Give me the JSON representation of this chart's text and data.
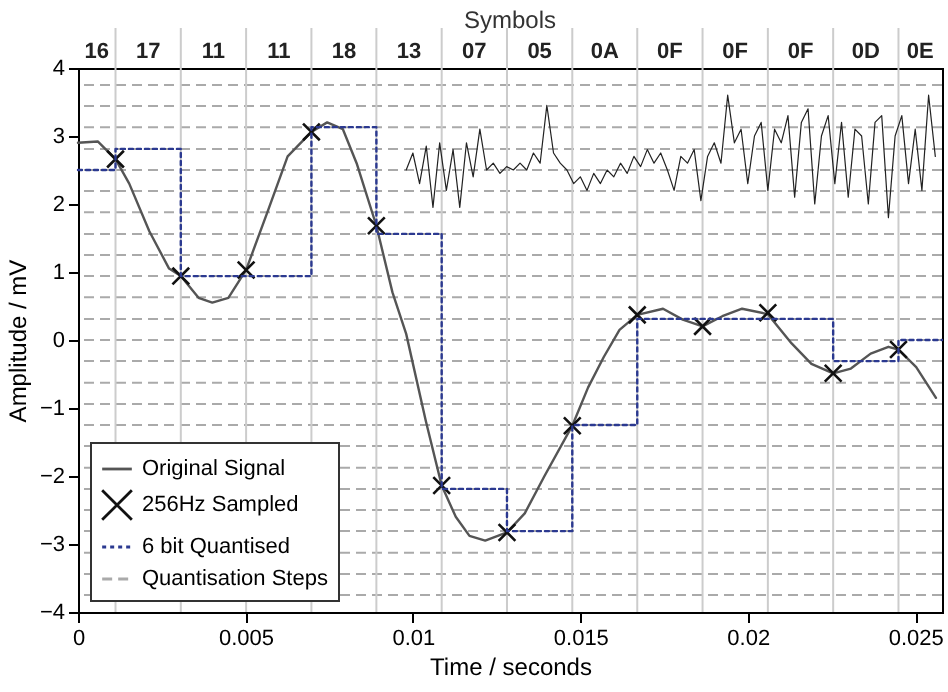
{
  "chart_data": {
    "type": "line",
    "xlabel": "Time / seconds",
    "ylabel": "Amplitude / mV",
    "x2label": "Symbols",
    "xlim": [
      0,
      0.0258
    ],
    "ylim": [
      -4,
      4
    ],
    "xticks": [
      0,
      0.005,
      0.01,
      0.015,
      0.02,
      0.025
    ],
    "yticks": [
      -4,
      -3,
      -2,
      -1,
      0,
      1,
      2,
      3,
      4
    ],
    "legend": "bottom left",
    "annotations": [
      "16",
      "17",
      "11",
      "11",
      "18",
      "13",
      "07",
      "05",
      "0A",
      "0F",
      "0F",
      "0F",
      "0D",
      "0E"
    ],
    "series": [
      {
        "name": "Original Signal",
        "type": "line",
        "color": "#555555",
        "line_style": "solid",
        "x": [
          0,
          0.00059,
          0.00112,
          0.00153,
          0.00213,
          0.00272,
          0.00307,
          0.0036,
          0.00401,
          0.00449,
          0.00502,
          0.00567,
          0.00626,
          0.00697,
          0.00744,
          0.00791,
          0.00832,
          0.00891,
          0.00939,
          0.0098,
          0.01039,
          0.01086,
          0.01128,
          0.01169,
          0.01216,
          0.01281,
          0.01334,
          0.01393,
          0.01476,
          0.01523,
          0.0157,
          0.01617,
          0.0167,
          0.01747,
          0.01806,
          0.01865,
          0.01924,
          0.01983,
          0.0206,
          0.02131,
          0.0219,
          0.02255,
          0.02308,
          0.02367,
          0.0242,
          0.0245,
          0.02503,
          0.02562
        ],
        "values": [
          2.9,
          2.92,
          2.66,
          2.3,
          1.6,
          1.05,
          0.94,
          0.62,
          0.55,
          0.62,
          1.03,
          1.9,
          2.7,
          3.06,
          3.2,
          3.1,
          2.6,
          1.68,
          0.7,
          0.09,
          -1.2,
          -2.14,
          -2.6,
          -2.88,
          -2.95,
          -2.83,
          -2.55,
          -2.0,
          -1.26,
          -0.7,
          -0.25,
          0.15,
          0.37,
          0.46,
          0.3,
          0.2,
          0.35,
          0.46,
          0.38,
          -0.05,
          -0.35,
          -0.49,
          -0.42,
          -0.2,
          -0.1,
          -0.14,
          -0.4,
          -0.85
        ]
      },
      {
        "name": "256Hz Sampled",
        "type": "scatter",
        "marker": "cross",
        "color": "#111111",
        "x": [
          0.00112,
          0.00307,
          0.00502,
          0.00697,
          0.00891,
          0.01086,
          0.01281,
          0.01476,
          0.0167,
          0.01865,
          0.0206,
          0.02255,
          0.0245
        ],
        "values": [
          2.66,
          0.94,
          1.03,
          3.06,
          1.68,
          -2.14,
          -2.83,
          -1.26,
          0.37,
          0.2,
          0.4,
          -0.49,
          -0.14
        ]
      },
      {
        "name": "6 bit Quantised",
        "type": "step",
        "color": "#2b3990",
        "line_style": "dotted",
        "x": [
          0,
          0.00112,
          0.00307,
          0.00502,
          0.00697,
          0.00891,
          0.01086,
          0.01281,
          0.01476,
          0.0167,
          0.01865,
          0.0206,
          0.02255,
          0.0245,
          0.0258
        ],
        "values": [
          2.5,
          2.81,
          0.94,
          0.94,
          3.13,
          1.56,
          -2.19,
          -2.81,
          -1.25,
          0.31,
          0.31,
          0.31,
          -0.31,
          0,
          0
        ]
      },
      {
        "type": "line",
        "color": "#222222",
        "line_style": "solid",
        "x": [
          0.0098,
          0.01,
          0.0102,
          0.0104,
          0.0106,
          0.0108,
          0.011,
          0.0112,
          0.0114,
          0.0116,
          0.0118,
          0.012,
          0.0122,
          0.0124,
          0.0126,
          0.0128,
          0.013,
          0.0132,
          0.0134,
          0.0136,
          0.0138,
          0.014,
          0.0142,
          0.0144,
          0.0146,
          0.0148,
          0.015,
          0.0152,
          0.0154,
          0.0156,
          0.0158,
          0.016,
          0.0162,
          0.0164,
          0.0166,
          0.0168,
          0.017,
          0.0172,
          0.0174,
          0.0176,
          0.0178,
          0.018,
          0.0182,
          0.0184,
          0.0186,
          0.0188,
          0.019,
          0.0192,
          0.0194,
          0.0196,
          0.0198,
          0.02,
          0.0202,
          0.0204,
          0.0206,
          0.0208,
          0.021,
          0.0212,
          0.0214,
          0.0216,
          0.0218,
          0.022,
          0.0222,
          0.0224,
          0.0226,
          0.0228,
          0.023,
          0.0232,
          0.0234,
          0.0236,
          0.0238,
          0.024,
          0.0242,
          0.0244,
          0.0246,
          0.0248,
          0.025,
          0.0252,
          0.0254,
          0.0256
        ],
        "values": [
          2.5,
          2.75,
          2.3,
          2.85,
          1.95,
          2.9,
          2.2,
          2.8,
          1.95,
          2.9,
          2.4,
          3.1,
          2.5,
          2.6,
          2.45,
          2.55,
          2.5,
          2.6,
          2.5,
          2.75,
          2.6,
          3.45,
          2.75,
          2.6,
          2.5,
          2.3,
          2.4,
          2.2,
          2.45,
          2.3,
          2.5,
          2.4,
          2.6,
          2.45,
          2.7,
          2.55,
          2.8,
          2.6,
          2.75,
          2.5,
          2.2,
          2.7,
          2.6,
          2.8,
          2.05,
          2.7,
          2.9,
          2.6,
          3.6,
          2.9,
          3.1,
          2.3,
          3.0,
          3.2,
          2.2,
          3.1,
          2.9,
          3.3,
          2.1,
          3.2,
          3.4,
          2.0,
          3.0,
          3.3,
          2.3,
          3.2,
          2.1,
          3.1,
          3.0,
          2.0,
          3.2,
          3.3,
          1.8,
          3.0,
          3.3,
          2.3,
          3.1,
          2.2,
          3.6,
          2.7
        ]
      }
    ],
    "ref_lines": [
      {
        "axis": "y",
        "value": -3.75,
        "label": "Quantisation Steps",
        "color": "#aaaaaa",
        "line_style": "dashed"
      },
      {
        "axis": "y",
        "value": -3.44,
        "color": "#aaaaaa",
        "line_style": "dashed"
      },
      {
        "axis": "y",
        "value": -3.13,
        "color": "#aaaaaa",
        "line_style": "dashed"
      },
      {
        "axis": "y",
        "value": -2.81,
        "color": "#aaaaaa",
        "line_style": "dashed"
      },
      {
        "axis": "y",
        "value": -2.5,
        "color": "#aaaaaa",
        "line_style": "dashed"
      },
      {
        "axis": "y",
        "value": -2.19,
        "color": "#aaaaaa",
        "line_style": "dashed"
      },
      {
        "axis": "y",
        "value": -1.88,
        "color": "#aaaaaa",
        "line_style": "dashed"
      },
      {
        "axis": "y",
        "value": -1.56,
        "color": "#aaaaaa",
        "line_style": "dashed"
      },
      {
        "axis": "y",
        "value": -1.25,
        "color": "#aaaaaa",
        "line_style": "dashed"
      },
      {
        "axis": "y",
        "value": -0.94,
        "color": "#aaaaaa",
        "line_style": "dashed"
      },
      {
        "axis": "y",
        "value": -0.63,
        "color": "#aaaaaa",
        "line_style": "dashed"
      },
      {
        "axis": "y",
        "value": -0.31,
        "color": "#aaaaaa",
        "line_style": "dashed"
      },
      {
        "axis": "y",
        "value": 0,
        "color": "#aaaaaa",
        "line_style": "dashed"
      },
      {
        "axis": "y",
        "value": 0.31,
        "color": "#aaaaaa",
        "line_style": "dashed"
      },
      {
        "axis": "y",
        "value": 0.63,
        "color": "#aaaaaa",
        "line_style": "dashed"
      },
      {
        "axis": "y",
        "value": 0.94,
        "color": "#aaaaaa",
        "line_style": "dashed"
      },
      {
        "axis": "y",
        "value": 1.25,
        "color": "#aaaaaa",
        "line_style": "dashed"
      },
      {
        "axis": "y",
        "value": 1.56,
        "color": "#aaaaaa",
        "line_style": "dashed"
      },
      {
        "axis": "y",
        "value": 1.88,
        "color": "#aaaaaa",
        "line_style": "dashed"
      },
      {
        "axis": "y",
        "value": 2.19,
        "color": "#aaaaaa",
        "line_style": "dashed"
      },
      {
        "axis": "y",
        "value": 2.5,
        "color": "#aaaaaa",
        "line_style": "dashed"
      },
      {
        "axis": "y",
        "value": 2.81,
        "color": "#aaaaaa",
        "line_style": "dashed"
      },
      {
        "axis": "y",
        "value": 3.13,
        "color": "#aaaaaa",
        "line_style": "dashed"
      },
      {
        "axis": "y",
        "value": 3.44,
        "color": "#aaaaaa",
        "line_style": "dashed"
      },
      {
        "axis": "y",
        "value": 3.75,
        "color": "#aaaaaa",
        "line_style": "dashed"
      },
      {
        "axis": "x",
        "value": 0.00112,
        "color": "#cccccc",
        "line_style": "solid"
      },
      {
        "axis": "x",
        "value": 0.00307,
        "color": "#cccccc",
        "line_style": "solid"
      },
      {
        "axis": "x",
        "value": 0.00502,
        "color": "#cccccc",
        "line_style": "solid"
      },
      {
        "axis": "x",
        "value": 0.00697,
        "color": "#cccccc",
        "line_style": "solid"
      },
      {
        "axis": "x",
        "value": 0.00891,
        "color": "#cccccc",
        "line_style": "solid"
      },
      {
        "axis": "x",
        "value": 0.01086,
        "color": "#cccccc",
        "line_style": "solid"
      },
      {
        "axis": "x",
        "value": 0.01281,
        "color": "#cccccc",
        "line_style": "solid"
      },
      {
        "axis": "x",
        "value": 0.01476,
        "color": "#cccccc",
        "line_style": "solid"
      },
      {
        "axis": "x",
        "value": 0.0167,
        "color": "#cccccc",
        "line_style": "solid"
      },
      {
        "axis": "x",
        "value": 0.01865,
        "color": "#cccccc",
        "line_style": "solid"
      },
      {
        "axis": "x",
        "value": 0.0206,
        "color": "#cccccc",
        "line_style": "solid"
      },
      {
        "axis": "x",
        "value": 0.02255,
        "color": "#cccccc",
        "line_style": "solid"
      },
      {
        "axis": "x",
        "value": 0.0245,
        "color": "#cccccc",
        "line_style": "solid"
      }
    ]
  }
}
